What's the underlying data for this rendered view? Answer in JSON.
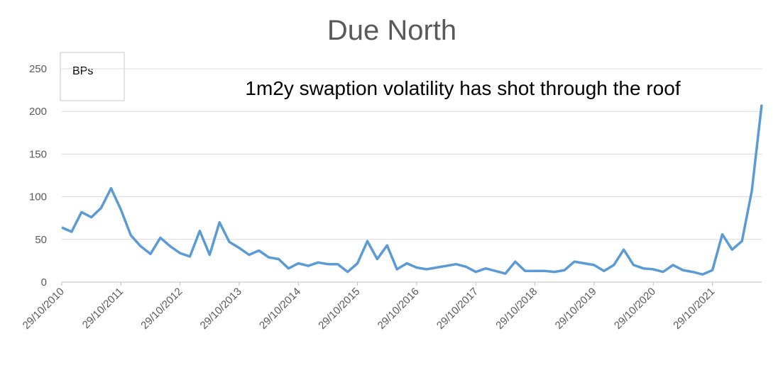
{
  "chart_data": {
    "type": "line",
    "title": "Due North",
    "annotation": "1m2y swaption volatility has shot through the roof",
    "y_label": "BPs",
    "categories": [
      "29/10/2010",
      null,
      null,
      null,
      null,
      null,
      "29/10/2011",
      null,
      null,
      null,
      null,
      null,
      "29/10/2012",
      null,
      null,
      null,
      null,
      null,
      "29/10/2013",
      null,
      null,
      null,
      null,
      null,
      "29/10/2014",
      null,
      null,
      null,
      null,
      null,
      "29/10/2015",
      null,
      null,
      null,
      null,
      null,
      "29/10/2016",
      null,
      null,
      null,
      null,
      null,
      "29/10/2017",
      null,
      null,
      null,
      null,
      null,
      "29/10/2018",
      null,
      null,
      null,
      null,
      null,
      "29/10/2019",
      null,
      null,
      null,
      null,
      null,
      "29/10/2020",
      null,
      null,
      null,
      null,
      null,
      "29/10/2021",
      null,
      null,
      null,
      null,
      null
    ],
    "series": [
      {
        "name": "1m2y swaption volatility",
        "color": "#5b9bd5",
        "values": [
          64,
          59,
          82,
          76,
          87,
          110,
          85,
          55,
          42,
          33,
          52,
          42,
          34,
          30,
          60,
          32,
          70,
          47,
          40,
          32,
          37,
          29,
          27,
          16,
          22,
          19,
          23,
          21,
          21,
          12,
          22,
          48,
          27,
          43,
          15,
          22,
          17,
          15,
          17,
          19,
          21,
          18,
          12,
          16,
          13,
          10,
          24,
          13,
          13,
          13,
          12,
          14,
          24,
          22,
          20,
          13,
          20,
          38,
          20,
          16,
          15,
          12,
          20,
          14,
          12,
          9,
          14,
          56,
          38,
          48,
          107,
          208
        ]
      }
    ],
    "ylim": [
      0,
      250
    ],
    "yticks": [
      0,
      50,
      100,
      150,
      200,
      250
    ],
    "grid": true
  }
}
